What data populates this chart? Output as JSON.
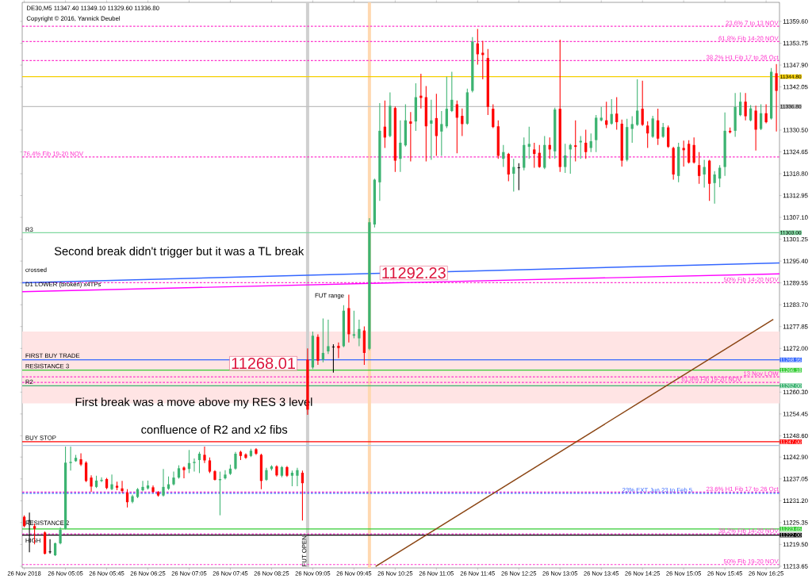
{
  "chart_data": {
    "type": "candlestick",
    "title": "DE30,M5  11347.40 11349.10 11329.60 11336.80",
    "subtitle": "Copyright © 2016, Yannick Deubel",
    "xlim": [
      "2018-11-26T04:23",
      "2018-11-26T16:38"
    ],
    "ylim": [
      11213.2,
      11364.7
    ],
    "xticks": [
      {
        "value": "2018-11-26T04:25",
        "label": "26 Nov 2018"
      },
      {
        "value": "2018-11-26T05:05",
        "label": "26 Nov 05:05"
      },
      {
        "value": "2018-11-26T05:45",
        "label": "26 Nov 05:45"
      },
      {
        "value": "2018-11-26T06:25",
        "label": "26 Nov 06:25"
      },
      {
        "value": "2018-11-26T07:05",
        "label": "26 Nov 07:05"
      },
      {
        "value": "2018-11-26T07:45",
        "label": "26 Nov 07:45"
      },
      {
        "value": "2018-11-26T08:25",
        "label": "26 Nov 08:25"
      },
      {
        "value": "2018-11-26T09:05",
        "label": "26 Nov 09:05"
      },
      {
        "value": "2018-11-26T09:45",
        "label": "26 Nov 09:45"
      },
      {
        "value": "2018-11-26T10:25",
        "label": "26 Nov 10:25"
      },
      {
        "value": "2018-11-26T11:05",
        "label": "26 Nov 11:05"
      },
      {
        "value": "2018-11-26T11:45",
        "label": "26 Nov 11:45"
      },
      {
        "value": "2018-11-26T12:25",
        "label": "26 Nov 12:25"
      },
      {
        "value": "2018-11-26T13:05",
        "label": "26 Nov 13:05"
      },
      {
        "value": "2018-11-26T13:45",
        "label": "26 Nov 13:45"
      },
      {
        "value": "2018-11-26T14:25",
        "label": "26 Nov 14:25"
      },
      {
        "value": "2018-11-26T15:05",
        "label": "26 Nov 15:05"
      },
      {
        "value": "2018-11-26T15:45",
        "label": "26 Nov 15:45"
      },
      {
        "value": "2018-11-26T16:25",
        "label": "26 Nov 16:25"
      }
    ],
    "yticks": [
      {
        "value": 11359.6,
        "label": "11359.60"
      },
      {
        "value": 11353.75,
        "label": "11353.75"
      },
      {
        "value": 11347.9,
        "label": "11347.90"
      },
      {
        "value": 11342.05,
        "label": "11342.05"
      },
      {
        "value": 11330.5,
        "label": "11330.50"
      },
      {
        "value": 11324.65,
        "label": "11324.65"
      },
      {
        "value": 11318.8,
        "label": "11318.80"
      },
      {
        "value": 11312.95,
        "label": "11312.95"
      },
      {
        "value": 11307.1,
        "label": "11307.10"
      },
      {
        "value": 11301.25,
        "label": "11301.25"
      },
      {
        "value": 11295.4,
        "label": "11295.40"
      },
      {
        "value": 11289.55,
        "label": "11289.55"
      },
      {
        "value": 11283.7,
        "label": "11283.70"
      },
      {
        "value": 11277.85,
        "label": "11277.85"
      },
      {
        "value": 11272.0,
        "label": "11272.00"
      },
      {
        "value": 11260.3,
        "label": "11260.30"
      },
      {
        "value": 11254.45,
        "label": "11254.45"
      },
      {
        "value": 11248.6,
        "label": "11248.60"
      },
      {
        "value": 11242.9,
        "label": "11242.90"
      },
      {
        "value": 11237.05,
        "label": "11237.05"
      },
      {
        "value": 11231.2,
        "label": "11231.20"
      },
      {
        "value": 11225.35,
        "label": "11225.35"
      },
      {
        "value": 11219.5,
        "label": "11219.50"
      },
      {
        "value": 11213.65,
        "label": "11213.65"
      }
    ],
    "bands": [
      {
        "axis": "y",
        "from": 11257.3,
        "to": 11276.5,
        "color": "#ffe4e4"
      }
    ],
    "ref_lines": [
      {
        "axis": "x",
        "value": "2018-11-26T09:00",
        "label": "FUT OPEN",
        "color": "#d0d0d0"
      },
      {
        "axis": "x",
        "value": "2018-11-26T10:00",
        "color": "#ffd8b0"
      },
      {
        "axis": "y",
        "value": 11358.3,
        "label": "23.6%   7 to 13 NOV",
        "color": "#ff33cc",
        "line_style": "dashed"
      },
      {
        "axis": "y",
        "value": 11354.2,
        "label": "61.8%  Fib 14-20  NOV",
        "color": "#ff33cc",
        "line_style": "dashed"
      },
      {
        "axis": "y",
        "value": 11349.1,
        "label": "38.2%  H1 Fib 17 to 26 Oct",
        "color": "#ff33cc",
        "line_style": "dashed"
      },
      {
        "axis": "y",
        "value": 11344.8,
        "label": "11344.80",
        "color": "#f5d000",
        "line_style": "solid"
      },
      {
        "axis": "y",
        "value": 11336.8,
        "label": "11336.80",
        "color": "#c0c0c0",
        "line_style": "solid"
      },
      {
        "axis": "y",
        "value": 11323.3,
        "label": "76.4%  Fib 19-20  NOV",
        "color": "#ff33cc",
        "line_style": "dashed"
      },
      {
        "axis": "y",
        "value": 11303.0,
        "label": "11303.00",
        "color": "#7fd8a0",
        "line_style": "solid"
      },
      {
        "axis": "y",
        "value": 11289.6,
        "label": "50%   Fib 14-20  NOV",
        "color": "#ff33cc",
        "line_style": "dashed"
      },
      {
        "axis": "y",
        "value": 11268.95,
        "label": "11268.95",
        "color": "#3366ff",
        "line_style": "solid"
      },
      {
        "axis": "y",
        "value": 11266.18,
        "label": "11266.18",
        "color": "#33cc33",
        "line_style": "solid"
      },
      {
        "axis": "y",
        "value": 11264.4,
        "label": "13 Nov LOW",
        "color": "#ff33cc",
        "line_style": "dashed"
      },
      {
        "axis": "y",
        "value": 11262.9,
        "label": "61.8%  Fib 19-20  NOV",
        "color": "#ff33cc",
        "line_style": "dashed"
      },
      {
        "axis": "y",
        "value": 11262.0,
        "label": "11262.00",
        "color": "#3cb371",
        "line_style": "solid"
      },
      {
        "axis": "y",
        "value": 11247.0,
        "label": "11247.00",
        "color": "#ff0000",
        "line_style": "solid"
      },
      {
        "axis": "y",
        "value": 11246.0,
        "color": "#b0c4de",
        "line_style": "solid"
      },
      {
        "axis": "y",
        "value": 11233.5,
        "label": "23.6%  H1 Fib 17 to 26 Oct",
        "color": "#ff33cc",
        "line_style": "dashed"
      },
      {
        "axis": "y",
        "value": 11233.2,
        "label": "23% EXT Jun 23 to Feb 5",
        "color": "#3366ff",
        "line_style": "dashed"
      },
      {
        "axis": "y",
        "value": 11223.65,
        "label": "11223.65",
        "color": "#33cc33",
        "line_style": "solid"
      },
      {
        "axis": "y",
        "value": 11222.3,
        "label": "38.2%  Fib 14-20  NOV",
        "color": "#ff33cc",
        "line_style": "dashed"
      },
      {
        "axis": "y",
        "value": 11222.0,
        "label": "11222.00",
        "color": "#000000",
        "line_style": "solid"
      },
      {
        "axis": "y",
        "value": 11214.1,
        "label": "50%   Fib 19-20  NOV",
        "color": "#ff33cc",
        "line_style": "dashed"
      }
    ],
    "annotations": [
      {
        "text": "R3",
        "x": "2018-11-26T04:25",
        "y": 11303.0
      },
      {
        "text": "D1 LOWER  (broken)  x4TPs",
        "x": "2018-11-26T04:25",
        "y": 11288.0
      },
      {
        "text": "FIRST BUY TRADE",
        "x": "2018-11-26T04:25",
        "y": 11269.2
      },
      {
        "text": "RESISTANCE 3",
        "x": "2018-11-26T04:25",
        "y": 11266.4
      },
      {
        "text": "R2",
        "x": "2018-11-26T04:25",
        "y": 11262.2
      },
      {
        "text": "BUY STOP",
        "x": "2018-11-26T04:25",
        "y": 11247.2
      },
      {
        "text": "RESISTANCE 2",
        "x": "2018-11-26T04:25",
        "y": 11224.4
      },
      {
        "text": "11268.01",
        "x": "2018-11-26T08:17",
        "y": 11268.01
      },
      {
        "text": "11292.23",
        "x": "2018-11-26T10:43",
        "y": 11292.23
      },
      "crossed",
      "HIGH",
      "FUT range",
      "Second break didn't trigger but it was a TL break",
      "First break was a move above my RES 3 level",
      "confluence of R2 and x2 fibs"
    ],
    "series": [
      {
        "type": "line",
        "color": "#3366ff",
        "x": [
          "2018-11-26T04:23",
          "2018-11-26T16:38"
        ],
        "values": [
          11289.6,
          11294.9
        ]
      },
      {
        "type": "line",
        "color": "#ff00ff",
        "x": [
          "2018-11-26T04:23",
          "2018-11-26T16:38"
        ],
        "values": [
          11287.2,
          11292.0
        ]
      },
      {
        "type": "line",
        "color": "#8b4513",
        "x": [
          "2018-11-26T10:06",
          "2018-11-26T16:32"
        ],
        "values": [
          11213.6,
          11279.8
        ]
      },
      {
        "color": "#3cb371",
        "x": [
          "2018-11-26T04:55",
          "2018-11-26T05:00",
          "2018-11-26T05:05",
          "2018-11-26T05:10",
          "2018-11-26T05:15",
          "2018-11-26T05:35",
          "2018-11-26T05:40",
          "2018-11-26T05:50",
          "2018-11-26T06:10",
          "2018-11-26T06:15",
          "2018-11-26T06:20",
          "2018-11-26T06:25",
          "2018-11-26T06:40",
          "2018-11-26T06:45",
          "2018-11-26T06:50",
          "2018-11-26T06:55",
          "2018-11-26T07:05",
          "2018-11-26T07:10",
          "2018-11-26T07:15",
          "2018-11-26T07:35",
          "2018-11-26T07:40",
          "2018-11-26T07:45",
          "2018-11-26T07:50",
          "2018-11-26T08:05",
          "2018-11-26T08:20",
          "2018-11-26T08:25",
          "2018-11-26T08:35",
          "2018-11-26T08:45",
          "2018-11-26T08:50",
          "2018-11-26T09:05",
          "2018-11-26T09:15",
          "2018-11-26T09:20",
          "2018-11-26T09:35",
          "2018-11-26T09:45",
          "2018-11-26T09:50",
          "2018-11-26T10:00",
          "2018-11-26T10:05",
          "2018-11-26T10:10",
          "2018-11-26T10:20",
          "2018-11-26T10:30",
          "2018-11-26T10:35",
          "2018-11-26T10:45",
          "2018-11-26T11:00",
          "2018-11-26T11:10",
          "2018-11-26T11:15",
          "2018-11-26T11:20",
          "2018-11-26T11:35",
          "2018-11-26T11:40",
          "2018-11-26T12:10",
          "2018-11-26T12:20",
          "2018-11-26T12:30",
          "2018-11-26T12:35",
          "2018-11-26T12:50",
          "2018-11-26T13:00",
          "2018-11-26T13:10",
          "2018-11-26T13:15",
          "2018-11-26T13:25",
          "2018-11-26T13:35",
          "2018-11-26T13:40",
          "2018-11-26T13:45",
          "2018-11-26T13:55",
          "2018-11-26T14:10",
          "2018-11-26T14:15",
          "2018-11-26T14:20",
          "2018-11-26T14:35",
          "2018-11-26T14:45",
          "2018-11-26T15:00",
          "2018-11-26T15:25",
          "2018-11-26T15:35",
          "2018-11-26T15:40",
          "2018-11-26T15:45",
          "2018-11-26T15:55",
          "2018-11-26T16:00",
          "2018-11-26T16:10",
          "2018-11-26T16:20",
          "2018-11-26T16:30"
        ],
        "ohlc": [
          [
            11216.6,
            11220.0,
            11216.4,
            11219.8
          ],
          [
            11219.8,
            11224.1,
            11219.5,
            11223.4
          ],
          [
            11223.7,
            11245.7,
            11223.5,
            11241.4
          ],
          [
            11241.3,
            11245.7,
            11239.3,
            11241.6
          ],
          [
            11241.8,
            11243.5,
            11241.6,
            11242.7
          ],
          [
            11234.9,
            11237.9,
            11234.6,
            11236.6
          ],
          [
            11236.5,
            11237.5,
            11236.2,
            11236.8
          ],
          [
            11234.3,
            11238.2,
            11234.0,
            11235.6
          ],
          [
            11230.9,
            11232.8,
            11230.5,
            11232.4
          ],
          [
            11232.2,
            11234.6,
            11231.9,
            11234.3
          ],
          [
            11234.0,
            11236.5,
            11233.7,
            11234.9
          ],
          [
            11234.5,
            11236.6,
            11234.2,
            11235.3
          ],
          [
            11232.6,
            11239.7,
            11232.3,
            11234.9
          ],
          [
            11234.4,
            11237.7,
            11234.1,
            11235.6
          ],
          [
            11235.6,
            11239.0,
            11235.3,
            11237.4
          ],
          [
            11237.4,
            11240.7,
            11237.1,
            11239.9
          ],
          [
            11239.7,
            11244.8,
            11238.6,
            11241.3
          ],
          [
            11241.3,
            11242.5,
            11239.0,
            11241.6
          ],
          [
            11242.1,
            11244.3,
            11238.6,
            11243.8
          ],
          [
            11236.7,
            11239.0,
            11227.3,
            11237.0
          ],
          [
            11237.2,
            11239.4,
            11236.9,
            11238.2
          ],
          [
            11238.4,
            11240.9,
            11238.1,
            11239.8
          ],
          [
            11239.8,
            11244.3,
            11239.5,
            11243.8
          ],
          [
            11243.2,
            11245.1,
            11242.9,
            11244.6
          ],
          [
            11236.8,
            11240.0,
            11236.5,
            11239.4
          ],
          [
            11239.7,
            11240.7,
            11239.3,
            11240.4
          ],
          [
            11237.9,
            11240.5,
            11237.5,
            11240.2
          ],
          [
            11237.9,
            11239.3,
            11235.1,
            11238.7
          ],
          [
            11237.9,
            11240.0,
            11235.1,
            11239.4
          ],
          [
            11266.9,
            11276.5,
            11266.5,
            11275.4
          ],
          [
            11269.0,
            11280.0,
            11268.3,
            11270.8
          ],
          [
            11271.2,
            11279.7,
            11270.5,
            11272.6
          ],
          [
            11272.6,
            11283.6,
            11272.3,
            11282.1
          ],
          [
            11275.4,
            11282.1,
            11274.7,
            11275.8
          ],
          [
            11274.7,
            11279.7,
            11272.6,
            11277.2
          ],
          [
            11271.9,
            11306.9,
            11271.5,
            11305.8
          ],
          [
            11305.2,
            11317.5,
            11304.4,
            11317.2
          ],
          [
            11316.5,
            11337.7,
            11311.5,
            11330.3
          ],
          [
            11328.9,
            11340.6,
            11328.6,
            11337.0
          ],
          [
            11322.8,
            11333.1,
            11319.3,
            11327.1
          ],
          [
            11326.4,
            11337.4,
            11326.1,
            11333.1
          ],
          [
            11332.8,
            11343.0,
            11330.3,
            11339.3
          ],
          [
            11332.2,
            11338.6,
            11322.5,
            11333.1
          ],
          [
            11330.1,
            11335.6,
            11323.6,
            11332.1
          ],
          [
            11331.5,
            11344.8,
            11331.0,
            11336.2
          ],
          [
            11335.6,
            11346.1,
            11335.3,
            11338.6
          ],
          [
            11332.2,
            11341.6,
            11331.9,
            11340.6
          ],
          [
            11341.0,
            11355.4,
            11340.6,
            11354.2
          ],
          [
            11322.8,
            11326.5,
            11320.6,
            11324.6
          ],
          [
            11318.8,
            11322.8,
            11314.0,
            11320.6
          ],
          [
            11320.4,
            11328.5,
            11319.7,
            11326.5
          ],
          [
            11326.0,
            11331.4,
            11322.8,
            11326.8
          ],
          [
            11320.4,
            11328.9,
            11320.0,
            11326.5
          ],
          [
            11324.8,
            11336.5,
            11322.8,
            11336.0
          ],
          [
            11320.6,
            11326.8,
            11319.0,
            11323.7
          ],
          [
            11325.3,
            11326.8,
            11318.8,
            11326.5
          ],
          [
            11327.2,
            11328.9,
            11322.8,
            11327.6
          ],
          [
            11325.7,
            11329.6,
            11324.6,
            11327.5
          ],
          [
            11327.8,
            11334.5,
            11324.6,
            11333.8
          ],
          [
            11333.1,
            11336.7,
            11332.8,
            11333.8
          ],
          [
            11332.2,
            11338.8,
            11331.9,
            11334.8
          ],
          [
            11322.5,
            11333.5,
            11322.1,
            11331.3
          ],
          [
            11330.8,
            11334.2,
            11327.1,
            11332.1
          ],
          [
            11331.9,
            11344.1,
            11331.6,
            11335.7
          ],
          [
            11328.7,
            11334.3,
            11328.4,
            11333.6
          ],
          [
            11328.7,
            11332.4,
            11328.4,
            11331.3
          ],
          [
            11318.2,
            11327.1,
            11316.5,
            11326.0
          ],
          [
            11318.6,
            11322.5,
            11315.1,
            11320.6
          ],
          [
            11316.3,
            11319.5,
            11310.8,
            11318.6
          ],
          [
            11317.5,
            11321.1,
            11315.2,
            11320.4
          ],
          [
            11320.6,
            11335.2,
            11318.2,
            11330.3
          ],
          [
            11330.3,
            11340.4,
            11328.7,
            11336.7
          ],
          [
            11334.5,
            11340.6,
            11334.2,
            11338.1
          ],
          [
            11333.1,
            11337.2,
            11332.8,
            11336.3
          ],
          [
            11330.8,
            11337.4,
            11330.5,
            11335.0
          ],
          [
            11333.6,
            11347.1,
            11333.3,
            11346.1
          ]
        ]
      },
      {
        "color": "#ff0000",
        "x": [
          "2018-11-26T04:25",
          "2018-11-26T04:35",
          "2018-11-26T04:45",
          "2018-11-26T05:20",
          "2018-11-26T05:25",
          "2018-11-26T05:30",
          "2018-11-26T05:45",
          "2018-11-26T05:55",
          "2018-11-26T06:00",
          "2018-11-26T06:05",
          "2018-11-26T06:30",
          "2018-11-26T06:35",
          "2018-11-26T07:00",
          "2018-11-26T07:20",
          "2018-11-26T07:25",
          "2018-11-26T07:30",
          "2018-11-26T07:55",
          "2018-11-26T08:00",
          "2018-11-26T08:10",
          "2018-11-26T08:15",
          "2018-11-26T08:30",
          "2018-11-26T08:40",
          "2018-11-26T08:55",
          "2018-11-26T09:00",
          "2018-11-26T09:10",
          "2018-11-26T09:30",
          "2018-11-26T09:40",
          "2018-11-26T09:55",
          "2018-11-26T10:15",
          "2018-11-26T10:25",
          "2018-11-26T10:40",
          "2018-11-26T10:50",
          "2018-11-26T10:55",
          "2018-11-26T11:05",
          "2018-11-26T11:25",
          "2018-11-26T11:30",
          "2018-11-26T11:45",
          "2018-11-26T11:50",
          "2018-11-26T11:55",
          "2018-11-26T12:00",
          "2018-11-26T12:05",
          "2018-11-26T12:15",
          "2018-11-26T12:40",
          "2018-11-26T12:45",
          "2018-11-26T12:55",
          "2018-11-26T13:05",
          "2018-11-26T13:20",
          "2018-11-26T13:30",
          "2018-11-26T13:50",
          "2018-11-26T14:00",
          "2018-11-26T14:05",
          "2018-11-26T14:25",
          "2018-11-26T14:30",
          "2018-11-26T14:40",
          "2018-11-26T14:50",
          "2018-11-26T14:55",
          "2018-11-26T15:05",
          "2018-11-26T15:10",
          "2018-11-26T15:15",
          "2018-11-26T15:20",
          "2018-11-26T15:30",
          "2018-11-26T15:50",
          "2018-11-26T16:05",
          "2018-11-26T16:15",
          "2018-11-26T16:25",
          "2018-11-26T16:35"
        ],
        "ohlc": [
          [
            11226.9,
            11227.3,
            11224.1,
            11224.4
          ],
          [
            11224.4,
            11225.1,
            11219.5,
            11223.7
          ],
          [
            11222.7,
            11223.0,
            11216.8,
            11217.0
          ],
          [
            11242.3,
            11243.9,
            11240.5,
            11240.9
          ],
          [
            11241.4,
            11241.8,
            11236.2,
            11236.5
          ],
          [
            11237.4,
            11238.0,
            11233.6,
            11235.0
          ],
          [
            11237.0,
            11237.3,
            11234.3,
            11234.6
          ],
          [
            11235.2,
            11236.3,
            11234.0,
            11234.7
          ],
          [
            11234.5,
            11236.5,
            11233.3,
            11233.8
          ],
          [
            11233.4,
            11234.3,
            11229.4,
            11230.8
          ],
          [
            11234.8,
            11235.3,
            11233.3,
            11233.6
          ],
          [
            11233.5,
            11233.8,
            11232.3,
            11232.6
          ],
          [
            11240.1,
            11240.4,
            11237.2,
            11239.4
          ],
          [
            11243.5,
            11245.7,
            11241.3,
            11242.0
          ],
          [
            11242.0,
            11242.8,
            11238.6,
            11239.0
          ],
          [
            11239.1,
            11239.4,
            11236.6,
            11236.8
          ],
          [
            11244.3,
            11244.6,
            11242.1,
            11243.2
          ],
          [
            11243.6,
            11243.9,
            11242.4,
            11242.7
          ],
          [
            11245.0,
            11245.3,
            11243.5,
            11243.8
          ],
          [
            11243.5,
            11243.8,
            11234.3,
            11236.5
          ],
          [
            11240.4,
            11240.7,
            11237.7,
            11238.0
          ],
          [
            11240.2,
            11240.5,
            11237.6,
            11237.9
          ],
          [
            11238.7,
            11239.3,
            11225.9,
            11235.9
          ],
          [
            11269.0,
            11272.0,
            11254.2,
            11255.6
          ],
          [
            11275.1,
            11275.8,
            11267.6,
            11268.7
          ],
          [
            11272.7,
            11273.6,
            11269.4,
            11272.1
          ],
          [
            11282.8,
            11286.4,
            11273.6,
            11275.8
          ],
          [
            11276.8,
            11277.9,
            11267.6,
            11270.8
          ],
          [
            11331.4,
            11338.4,
            11325.7,
            11328.5
          ],
          [
            11336.4,
            11336.8,
            11319.3,
            11322.3
          ],
          [
            11332.8,
            11335.3,
            11322.1,
            11332.2
          ],
          [
            11339.7,
            11345.6,
            11336.3,
            11339.1
          ],
          [
            11339.3,
            11342.3,
            11322.1,
            11331.5
          ],
          [
            11333.7,
            11340.2,
            11323.6,
            11328.9
          ],
          [
            11337.4,
            11338.4,
            11324.3,
            11333.8
          ],
          [
            11334.3,
            11336.3,
            11328.9,
            11332.1
          ],
          [
            11353.7,
            11357.6,
            11348.0,
            11350.8
          ],
          [
            11351.2,
            11354.4,
            11344.1,
            11350.6
          ],
          [
            11349.8,
            11352.2,
            11334.5,
            11336.7
          ],
          [
            11336.2,
            11337.4,
            11331.0,
            11331.3
          ],
          [
            11331.5,
            11333.1,
            11322.8,
            11323.6
          ],
          [
            11324.1,
            11324.4,
            11316.8,
            11318.6
          ],
          [
            11325.3,
            11327.1,
            11320.4,
            11324.1
          ],
          [
            11324.4,
            11326.5,
            11320.4,
            11320.6
          ],
          [
            11326.5,
            11328.5,
            11322.8,
            11325.3
          ],
          [
            11336.2,
            11354.7,
            11319.3,
            11320.6
          ],
          [
            11326.4,
            11333.1,
            11322.1,
            11326.0
          ],
          [
            11327.1,
            11330.6,
            11322.8,
            11324.6
          ],
          [
            11333.1,
            11338.1,
            11331.0,
            11331.9
          ],
          [
            11334.9,
            11339.3,
            11330.6,
            11332.6
          ],
          [
            11332.2,
            11333.3,
            11320.7,
            11322.3
          ],
          [
            11336.2,
            11343.7,
            11331.6,
            11331.9
          ],
          [
            11331.7,
            11332.8,
            11325.7,
            11329.6
          ],
          [
            11333.1,
            11336.2,
            11326.5,
            11328.2
          ],
          [
            11331.2,
            11331.7,
            11325.7,
            11326.0
          ],
          [
            11325.7,
            11326.0,
            11317.2,
            11318.6
          ],
          [
            11325.7,
            11327.7,
            11320.7,
            11325.1
          ],
          [
            11326.8,
            11327.8,
            11321.5,
            11321.8
          ],
          [
            11326.5,
            11328.5,
            11321.5,
            11321.8
          ],
          [
            11321.1,
            11324.6,
            11316.1,
            11318.2
          ],
          [
            11322.3,
            11322.5,
            11311.5,
            11316.1
          ],
          [
            11330.3,
            11331.2,
            11329.6,
            11329.9
          ],
          [
            11338.1,
            11340.4,
            11333.1,
            11334.2
          ],
          [
            11335.7,
            11337.0,
            11325.0,
            11330.6
          ],
          [
            11335.0,
            11337.4,
            11332.3,
            11332.6
          ],
          [
            11345.7,
            11348.2,
            11330.1,
            11341.0
          ]
        ]
      },
      {
        "color": "#000000",
        "x": [
          "2018-11-26T04:30",
          "2018-11-26T04:50",
          "2018-11-26T09:25",
          "2018-11-26T12:25"
        ],
        "ohlc": [
          [
            11225.9,
            11228.0,
            11217.4,
            11225.9
          ],
          [
            11217.6,
            11220.9,
            11217.0,
            11217.4
          ],
          [
            11272.4,
            11273.1,
            11265.5,
            11272.4
          ],
          [
            11320.4,
            11321.6,
            11314.4,
            11320.4
          ]
        ]
      }
    ]
  }
}
